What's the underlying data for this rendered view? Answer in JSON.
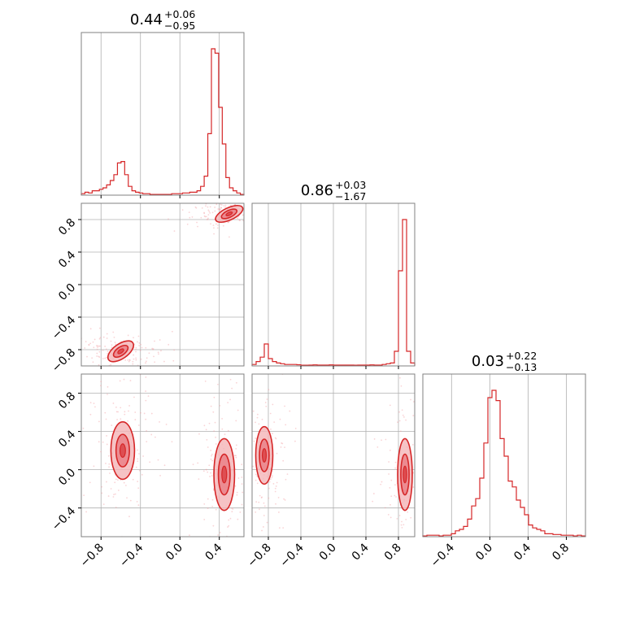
{
  "colors": {
    "line": "#d62728",
    "fill": "#f4b4b6",
    "fill_inner": "#e8747a",
    "scatter": "#f2a0a3",
    "grid": "#b0b0b0",
    "frame": "#808080"
  },
  "chart_data": {
    "type": "corner",
    "grid": true,
    "parameters": [
      {
        "range": [
          -1.0,
          0.65
        ],
        "ticks": [
          -0.8,
          -0.4,
          0.0,
          0.4
        ],
        "tick_labels": [
          "−0.8",
          "−0.4",
          "0.0",
          "0.4"
        ]
      },
      {
        "range": [
          -1.0,
          1.0
        ],
        "ticks": [
          -0.8,
          -0.4,
          0.0,
          0.4,
          0.8
        ],
        "tick_labels": [
          "−0.8",
          "−0.4",
          "0.0",
          "0.4",
          "0.8"
        ]
      },
      {
        "range": [
          -0.7,
          1.0
        ],
        "ticks": [
          -0.4,
          0.0,
          0.4,
          0.8
        ],
        "tick_labels": [
          "−0.4",
          "0.0",
          "0.4",
          "0.8"
        ]
      }
    ],
    "titles": [
      {
        "value": "0.44",
        "upper": "+0.06",
        "lower": "−0.95"
      },
      {
        "value": "0.86",
        "upper": "+0.03",
        "lower": "−1.67"
      },
      {
        "value": "0.03",
        "upper": "+0.22",
        "lower": "−0.13"
      }
    ],
    "histograms": [
      {
        "bins": [
          -1.0,
          0.65
        ],
        "heights": [
          0.01,
          0.02,
          0.015,
          0.03,
          0.03,
          0.04,
          0.05,
          0.07,
          0.1,
          0.14,
          0.22,
          0.23,
          0.14,
          0.06,
          0.03,
          0.02,
          0.015,
          0.01,
          0.01,
          0.005,
          0.005,
          0.005,
          0.005,
          0.005,
          0.005,
          0.01,
          0.01,
          0.01,
          0.015,
          0.015,
          0.02,
          0.02,
          0.03,
          0.06,
          0.13,
          0.42,
          1.0,
          0.97,
          0.6,
          0.35,
          0.12,
          0.05,
          0.03,
          0.015,
          0.005
        ]
      },
      {
        "bins": [
          -1.0,
          1.0
        ],
        "heights": [
          0.01,
          0.03,
          0.06,
          0.15,
          0.05,
          0.03,
          0.02,
          0.015,
          0.01,
          0.01,
          0.01,
          0.008,
          0.005,
          0.005,
          0.006,
          0.007,
          0.006,
          0.006,
          0.006,
          0.007,
          0.006,
          0.006,
          0.006,
          0.006,
          0.006,
          0.005,
          0.006,
          0.006,
          0.006,
          0.007,
          0.006,
          0.006,
          0.01,
          0.015,
          0.02,
          0.1,
          0.65,
          1.0,
          0.1,
          0.02
        ]
      },
      {
        "bins": [
          -0.7,
          1.0
        ],
        "heights": [
          0.005,
          0.01,
          0.01,
          0.01,
          0.005,
          0.01,
          0.01,
          0.02,
          0.04,
          0.05,
          0.07,
          0.12,
          0.21,
          0.26,
          0.4,
          0.64,
          0.95,
          1.0,
          0.93,
          0.67,
          0.55,
          0.38,
          0.34,
          0.25,
          0.2,
          0.15,
          0.08,
          0.06,
          0.05,
          0.04,
          0.02,
          0.02,
          0.015,
          0.015,
          0.01,
          0.01,
          0.01,
          0.005,
          0.01,
          0.005
        ]
      }
    ],
    "contours_2d": [
      {
        "pair": [
          0,
          1
        ],
        "modes": [
          {
            "center": [
              0.5,
              0.87
            ],
            "spread": [
              0.1,
              0.05
            ],
            "tilt_deg": -25
          },
          {
            "center": [
              -0.6,
              -0.82
            ],
            "spread": [
              0.1,
              0.06
            ],
            "tilt_deg": -35
          }
        ]
      },
      {
        "pair": [
          0,
          2
        ],
        "modes": [
          {
            "center": [
              -0.58,
              0.2
            ],
            "spread": [
              0.08,
              0.2
            ]
          },
          {
            "center": [
              0.45,
              -0.05
            ],
            "spread": [
              0.07,
              0.25
            ]
          }
        ]
      },
      {
        "pair": [
          1,
          2
        ],
        "modes": [
          {
            "center": [
              -0.85,
              0.15
            ],
            "spread": [
              0.07,
              0.2
            ]
          },
          {
            "center": [
              0.88,
              -0.05
            ],
            "spread": [
              0.06,
              0.25
            ]
          }
        ]
      }
    ]
  }
}
